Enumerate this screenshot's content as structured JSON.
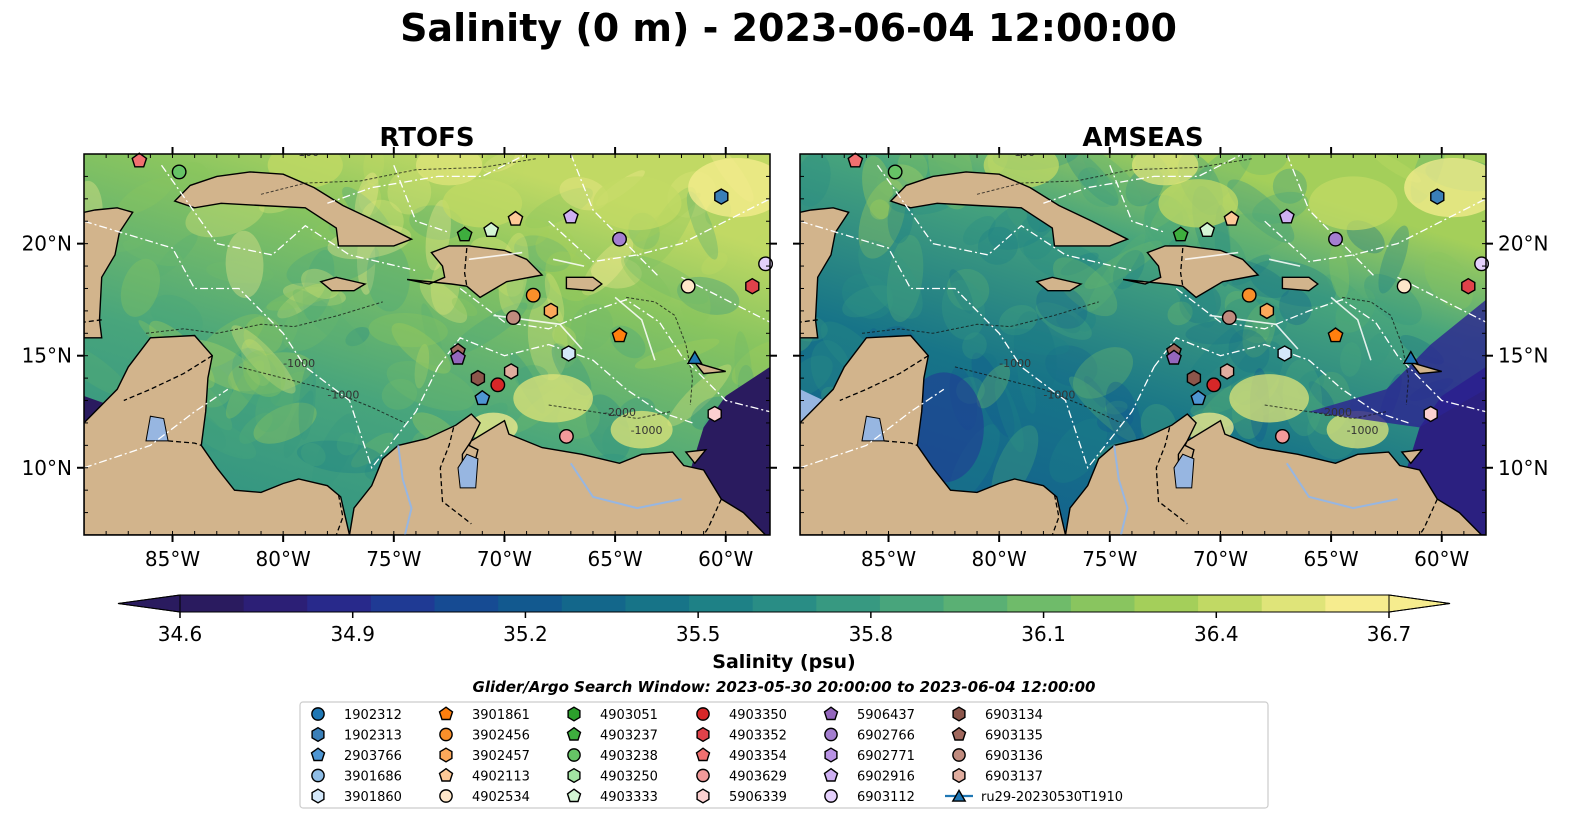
{
  "title": "Salinity (0 m) - 2023-06-04 12:00:00",
  "colors": {
    "land": "#d2b48c",
    "lake": "#97b6e1",
    "colormap": [
      "#2a1b5f",
      "#2c1f76",
      "#28298b",
      "#1f3a94",
      "#164b93",
      "#12598f",
      "#13678b",
      "#177488",
      "#1e8186",
      "#298d85",
      "#379981",
      "#48a57c",
      "#5ab074",
      "#6fbb6a",
      "#89c55f",
      "#a4cf5a",
      "#c1d964",
      "#dfe479",
      "#f6ec8e"
    ]
  },
  "chart_data": [
    {
      "type": "heatmap",
      "title": "RTOFS",
      "x_ticks": [
        "85°W",
        "80°W",
        "75°W",
        "70°W",
        "65°W",
        "60°W"
      ],
      "x_tick_values": [
        -85,
        -80,
        -75,
        -70,
        -65,
        -60
      ],
      "y_ticks": [
        "10°N",
        "15°N",
        "20°N"
      ],
      "y_tick_values": [
        10,
        15,
        20
      ],
      "xlim": [
        -89,
        -58
      ],
      "ylim": [
        7,
        24
      ],
      "contour_labels": [
        "-100",
        "-1000",
        "-2000"
      ]
    },
    {
      "type": "heatmap",
      "title": "AMSEAS",
      "x_ticks": [
        "85°W",
        "80°W",
        "75°W",
        "70°W",
        "65°W",
        "60°W"
      ],
      "x_tick_values": [
        -85,
        -80,
        -75,
        -70,
        -65,
        -60
      ],
      "y_ticks": [
        "10°N",
        "15°N",
        "20°N"
      ],
      "y_tick_values": [
        10,
        15,
        20
      ],
      "xlim": [
        -89,
        -58
      ],
      "ylim": [
        7,
        24
      ],
      "contour_labels": [
        "-100",
        "-1000",
        "-2000"
      ]
    }
  ],
  "colorbar": {
    "label": "Salinity (psu)",
    "ticks": [
      "34.6",
      "34.9",
      "35.2",
      "35.5",
      "35.8",
      "36.1",
      "36.4",
      "36.7"
    ],
    "tick_values": [
      34.6,
      34.9,
      35.2,
      35.5,
      35.8,
      36.1,
      36.4,
      36.7
    ],
    "min": 34.6,
    "max": 36.7
  },
  "search_window": "Glider/Argo Search Window: 2023-05-30 20:00:00 to 2023-06-04 12:00:00",
  "legend": [
    {
      "label": "1902312",
      "marker": "circle",
      "color": "#1f77b4"
    },
    {
      "label": "1902313",
      "marker": "hexagon",
      "color": "#3a7fb8"
    },
    {
      "label": "2903766",
      "marker": "pentagon",
      "color": "#4e96d3"
    },
    {
      "label": "3901686",
      "marker": "circle",
      "color": "#8fbde6"
    },
    {
      "label": "3901860",
      "marker": "hexagon",
      "color": "#d4e8fa"
    },
    {
      "label": "3901861",
      "marker": "pentagon",
      "color": "#ff7f0e"
    },
    {
      "label": "3902456",
      "marker": "circle",
      "color": "#f98f2a"
    },
    {
      "label": "3902457",
      "marker": "hexagon",
      "color": "#fca85a"
    },
    {
      "label": "4902113",
      "marker": "pentagon",
      "color": "#fdc997"
    },
    {
      "label": "4902534",
      "marker": "circle",
      "color": "#fee6c9"
    },
    {
      "label": "4903051",
      "marker": "hexagon",
      "color": "#2ca02c"
    },
    {
      "label": "4903237",
      "marker": "pentagon",
      "color": "#3eae3e"
    },
    {
      "label": "4903238",
      "marker": "circle",
      "color": "#66c466"
    },
    {
      "label": "4903250",
      "marker": "hexagon",
      "color": "#a3e3a3"
    },
    {
      "label": "4903333",
      "marker": "pentagon",
      "color": "#d4f5d4"
    },
    {
      "label": "4903350",
      "marker": "circle",
      "color": "#d62728"
    },
    {
      "label": "4903352",
      "marker": "hexagon",
      "color": "#e0424a"
    },
    {
      "label": "4903354",
      "marker": "pentagon",
      "color": "#f07070"
    },
    {
      "label": "4903629",
      "marker": "circle",
      "color": "#f29a9a"
    },
    {
      "label": "5906339",
      "marker": "hexagon",
      "color": "#fbd0d0"
    },
    {
      "label": "5906437",
      "marker": "pentagon",
      "color": "#9467bd"
    },
    {
      "label": "6902766",
      "marker": "circle",
      "color": "#a47ed0"
    },
    {
      "label": "6902771",
      "marker": "hexagon",
      "color": "#b993e5"
    },
    {
      "label": "6902916",
      "marker": "pentagon",
      "color": "#ceb0f2"
    },
    {
      "label": "6903112",
      "marker": "circle",
      "color": "#e4d0fb"
    },
    {
      "label": "6903134",
      "marker": "hexagon",
      "color": "#8c564b"
    },
    {
      "label": "6903135",
      "marker": "pentagon",
      "color": "#a0685d"
    },
    {
      "label": "6903136",
      "marker": "circle",
      "color": "#c08b7e"
    },
    {
      "label": "6903137",
      "marker": "hexagon",
      "color": "#e0ad9f"
    },
    {
      "label": "ru29-20230530T1910",
      "marker": "triangle",
      "color": "#1f77b4"
    }
  ],
  "observations": [
    {
      "id": "1902313",
      "lon": -60.2,
      "lat": 22.1
    },
    {
      "id": "4903238",
      "lon": -84.7,
      "lat": 23.2
    },
    {
      "id": "4903354",
      "lon": -86.5,
      "lat": 23.7
    },
    {
      "id": "4903237",
      "lon": -71.8,
      "lat": 20.4
    },
    {
      "id": "4903333",
      "lon": -70.6,
      "lat": 20.6
    },
    {
      "id": "4902113",
      "lon": -69.5,
      "lat": 21.1
    },
    {
      "id": "6902916",
      "lon": -67.0,
      "lat": 21.2
    },
    {
      "id": "6902766",
      "lon": -64.8,
      "lat": 20.2
    },
    {
      "id": "6903112",
      "lon": -58.2,
      "lat": 19.1
    },
    {
      "id": "4903352",
      "lon": -58.8,
      "lat": 18.1
    },
    {
      "id": "4902534",
      "lon": -61.7,
      "lat": 18.1
    },
    {
      "id": "3902456",
      "lon": -68.7,
      "lat": 17.7
    },
    {
      "id": "3902457",
      "lon": -67.9,
      "lat": 17.0
    },
    {
      "id": "6903136",
      "lon": -69.6,
      "lat": 16.7
    },
    {
      "id": "3901861",
      "lon": -64.8,
      "lat": 15.9
    },
    {
      "id": "3901860",
      "lon": -67.1,
      "lat": 15.1
    },
    {
      "id": "6903135",
      "lon": -72.1,
      "lat": 15.2
    },
    {
      "id": "5906437",
      "lon": -72.1,
      "lat": 14.9
    },
    {
      "id": "6903134",
      "lon": -71.2,
      "lat": 14.0
    },
    {
      "id": "4903350",
      "lon": -70.3,
      "lat": 13.7
    },
    {
      "id": "6903137",
      "lon": -69.7,
      "lat": 14.3
    },
    {
      "id": "2903766",
      "lon": -71.0,
      "lat": 13.1
    },
    {
      "id": "4903629",
      "lon": -67.2,
      "lat": 11.4
    },
    {
      "id": "5906339",
      "lon": -60.5,
      "lat": 12.4
    },
    {
      "id": "ru29-20230530T1910",
      "lon": -61.4,
      "lat": 14.9
    }
  ]
}
